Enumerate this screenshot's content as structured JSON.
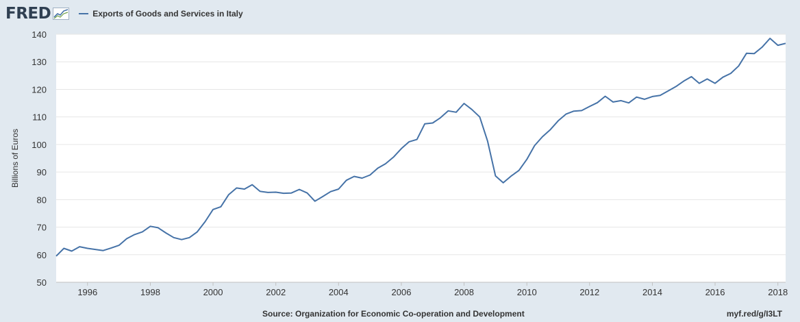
{
  "brand": {
    "logo_text": "FRED",
    "logo_icon": "chart-line-icon"
  },
  "footer": {
    "source": "Source: Organization for Economic Co-operation and Development",
    "link": "myf.red/g/I3LT"
  },
  "colors": {
    "line": "#4572a7",
    "background": "#e1e9f0",
    "plot": "#ffffff",
    "grid": "#e6e6e6"
  },
  "chart_data": {
    "type": "line",
    "title": "",
    "ylabel": "Billions of Euros",
    "xlabel": "",
    "ylim": [
      50,
      140
    ],
    "yticks": [
      50,
      60,
      70,
      80,
      90,
      100,
      110,
      120,
      130,
      140
    ],
    "xticks": [
      "1996",
      "1998",
      "2000",
      "2002",
      "2004",
      "2006",
      "2008",
      "2010",
      "2012",
      "2014",
      "2016",
      "2018"
    ],
    "grid": true,
    "legend_position": "top-left",
    "series": [
      {
        "name": "Exports of Goods and Services in Italy",
        "x": [
          "1995-01-01",
          "1995-04-01",
          "1995-07-01",
          "1995-10-01",
          "1996-01-01",
          "1996-04-01",
          "1996-07-01",
          "1996-10-01",
          "1997-01-01",
          "1997-04-01",
          "1997-07-01",
          "1997-10-01",
          "1998-01-01",
          "1998-04-01",
          "1998-07-01",
          "1998-10-01",
          "1999-01-01",
          "1999-04-01",
          "1999-07-01",
          "1999-10-01",
          "2000-01-01",
          "2000-04-01",
          "2000-07-01",
          "2000-10-01",
          "2001-01-01",
          "2001-04-01",
          "2001-07-01",
          "2001-10-01",
          "2002-01-01",
          "2002-04-01",
          "2002-07-01",
          "2002-10-01",
          "2003-01-01",
          "2003-04-01",
          "2003-07-01",
          "2003-10-01",
          "2004-01-01",
          "2004-04-01",
          "2004-07-01",
          "2004-10-01",
          "2005-01-01",
          "2005-04-01",
          "2005-07-01",
          "2005-10-01",
          "2006-01-01",
          "2006-04-01",
          "2006-07-01",
          "2006-10-01",
          "2007-01-01",
          "2007-04-01",
          "2007-07-01",
          "2007-10-01",
          "2008-01-01",
          "2008-04-01",
          "2008-07-01",
          "2008-10-01",
          "2009-01-01",
          "2009-04-01",
          "2009-07-01",
          "2009-10-01",
          "2010-01-01",
          "2010-04-01",
          "2010-07-01",
          "2010-10-01",
          "2011-01-01",
          "2011-04-01",
          "2011-07-01",
          "2011-10-01",
          "2012-01-01",
          "2012-04-01",
          "2012-07-01",
          "2012-10-01",
          "2013-01-01",
          "2013-04-01",
          "2013-07-01",
          "2013-10-01",
          "2014-01-01",
          "2014-04-01",
          "2014-07-01",
          "2014-10-01",
          "2015-01-01",
          "2015-04-01",
          "2015-07-01",
          "2015-10-01",
          "2016-01-01",
          "2016-04-01",
          "2016-07-01",
          "2016-10-01",
          "2017-01-01",
          "2017-04-01",
          "2017-07-01",
          "2017-10-01",
          "2018-01-01",
          "2018-04-01"
        ],
        "values": [
          59.5,
          62.3,
          61.3,
          62.9,
          62.3,
          61.9,
          61.5,
          62.4,
          63.4,
          65.8,
          67.3,
          68.3,
          70.3,
          69.8,
          67.9,
          66.2,
          65.5,
          66.2,
          68.3,
          72.0,
          76.4,
          77.4,
          81.8,
          84.2,
          83.8,
          85.4,
          83.0,
          82.6,
          82.7,
          82.3,
          82.4,
          83.7,
          82.4,
          79.4,
          81.1,
          82.9,
          83.8,
          87.0,
          88.4,
          87.8,
          88.9,
          91.4,
          93.0,
          95.4,
          98.5,
          101.0,
          101.8,
          107.5,
          107.8,
          109.7,
          112.2,
          111.7,
          114.9,
          112.7,
          110.0,
          101.2,
          88.6,
          86.1,
          88.5,
          90.6,
          94.6,
          99.6,
          102.8,
          105.4,
          108.6,
          111.0,
          112.1,
          112.3,
          113.8,
          115.2,
          117.5,
          115.4,
          115.9,
          115.1,
          117.2,
          116.4,
          117.4,
          117.8,
          119.4,
          121.0,
          123.0,
          124.6,
          122.2,
          123.8,
          122.2,
          124.4,
          125.8,
          128.5,
          133.1,
          133.0,
          135.3,
          138.5,
          136.0,
          136.7
        ]
      }
    ]
  }
}
